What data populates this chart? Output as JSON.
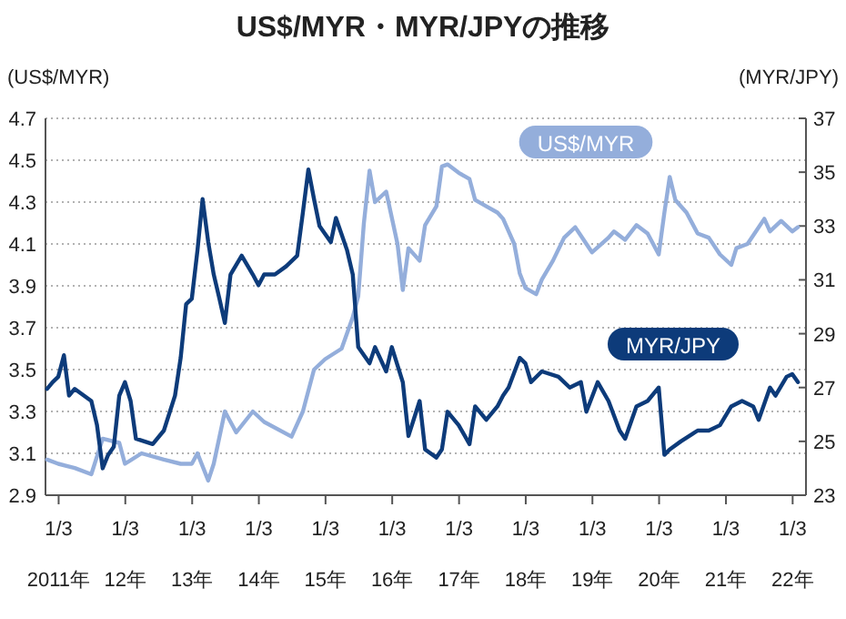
{
  "chart_data": {
    "type": "line",
    "title": "US$/MYR・MYR/JPYの推移",
    "ylabel": "(US$/MYR)",
    "y2label": "(MYR/JPY)",
    "xlim": [
      "2010-10-23",
      "2022-03-17"
    ],
    "xticks": [
      {
        "value": "2011-01-03",
        "label": "2011年"
      },
      {
        "value": "2012-01-03",
        "label": "12年"
      },
      {
        "value": "2013-01-03",
        "label": "13年"
      },
      {
        "value": "2014-01-03",
        "label": "14年"
      },
      {
        "value": "2015-01-03",
        "label": "15年"
      },
      {
        "value": "2016-01-03",
        "label": "16年"
      },
      {
        "value": "2017-01-03",
        "label": "17年"
      },
      {
        "value": "2018-01-03",
        "label": "18年"
      },
      {
        "value": "2019-01-03",
        "label": "19年"
      },
      {
        "value": "2020-01-03",
        "label": "20年"
      },
      {
        "value": "2021-01-03",
        "label": "21年"
      },
      {
        "value": "2022-01-03",
        "label": "22年"
      }
    ],
    "annotations": [
      "1/3",
      "1/3",
      "1/3",
      "1/3",
      "1/3",
      "1/3",
      "1/3",
      "1/3",
      "1/3",
      "1/3",
      "1/3",
      "1/3"
    ],
    "ylim": [
      2.9,
      4.7
    ],
    "yticks": [
      2.9,
      3.1,
      3.3,
      3.5,
      3.7,
      3.9,
      4.1,
      4.3,
      4.5,
      4.7
    ],
    "y2lim": [
      23,
      37
    ],
    "y2ticks": [
      23,
      25,
      27,
      29,
      31,
      33,
      35,
      37
    ],
    "grid": "y",
    "series": [
      {
        "name": "US$/MYR",
        "color": "#94aedb",
        "x": [
          "2010-11",
          "2011-01",
          "2011-04",
          "2011-07",
          "2011-09",
          "2011-12",
          "2012-01",
          "2012-04",
          "2012-08",
          "2012-11",
          "2013-01",
          "2013-02",
          "2013-04",
          "2013-05",
          "2013-07",
          "2013-09",
          "2013-12",
          "2014-02",
          "2014-07",
          "2014-09",
          "2014-11",
          "2015-01",
          "2015-04",
          "2015-06",
          "2015-07",
          "2015-08",
          "2015-09",
          "2015-10",
          "2015-12",
          "2016-02",
          "2016-03",
          "2016-04",
          "2016-06",
          "2016-07",
          "2016-09",
          "2016-10",
          "2016-11",
          "2017-01",
          "2017-03",
          "2017-04",
          "2017-06",
          "2017-08",
          "2017-09",
          "2017-11",
          "2017-12",
          "2018-01",
          "2018-03",
          "2018-04",
          "2018-06",
          "2018-08",
          "2018-10",
          "2018-12",
          "2019-01",
          "2019-04",
          "2019-05",
          "2019-07",
          "2019-09",
          "2019-11",
          "2020-01",
          "2020-02",
          "2020-03",
          "2020-04",
          "2020-06",
          "2020-08",
          "2020-10",
          "2020-12",
          "2021-02",
          "2021-03",
          "2021-05",
          "2021-08",
          "2021-09",
          "2021-11",
          "2022-01",
          "2022-02"
        ],
        "values": [
          3.07,
          3.05,
          3.03,
          3.0,
          3.17,
          3.15,
          3.05,
          3.1,
          3.07,
          3.05,
          3.05,
          3.1,
          2.97,
          3.05,
          3.3,
          3.2,
          3.3,
          3.25,
          3.18,
          3.3,
          3.5,
          3.55,
          3.6,
          3.75,
          3.85,
          4.2,
          4.45,
          4.3,
          4.35,
          4.1,
          3.88,
          4.08,
          4.02,
          4.19,
          4.28,
          4.47,
          4.48,
          4.44,
          4.41,
          4.31,
          4.28,
          4.25,
          4.22,
          4.1,
          3.96,
          3.89,
          3.86,
          3.93,
          4.02,
          4.13,
          4.18,
          4.1,
          4.06,
          4.13,
          4.16,
          4.12,
          4.19,
          4.15,
          4.05,
          4.25,
          4.42,
          4.31,
          4.25,
          4.15,
          4.13,
          4.05,
          4.0,
          4.08,
          4.1,
          4.22,
          4.16,
          4.21,
          4.16,
          4.18
        ]
      },
      {
        "name": "MYR/JPY",
        "color": "#0d3b7a",
        "axis": "y2",
        "x": [
          "2010-11",
          "2010-12",
          "2011-01",
          "2011-02",
          "2011-03",
          "2011-04",
          "2011-07",
          "2011-08",
          "2011-09",
          "2011-10",
          "2011-11",
          "2011-12",
          "2012-01",
          "2012-02",
          "2012-03",
          "2012-06",
          "2012-08",
          "2012-10",
          "2012-11",
          "2012-12",
          "2013-01",
          "2013-02",
          "2013-03",
          "2013-04",
          "2013-05",
          "2013-06",
          "2013-07",
          "2013-08",
          "2013-10",
          "2013-12",
          "2014-01",
          "2014-02",
          "2014-04",
          "2014-06",
          "2014-08",
          "2014-09",
          "2014-10",
          "2014-11",
          "2014-12",
          "2015-02",
          "2015-03",
          "2015-05",
          "2015-06",
          "2015-07",
          "2015-09",
          "2015-10",
          "2015-12",
          "2016-01",
          "2016-03",
          "2016-04",
          "2016-06",
          "2016-07",
          "2016-09",
          "2016-10",
          "2016-11",
          "2017-01",
          "2017-03",
          "2017-04",
          "2017-06",
          "2017-08",
          "2017-09",
          "2017-10",
          "2017-12",
          "2018-01",
          "2018-02",
          "2018-04",
          "2018-07",
          "2018-09",
          "2018-11",
          "2018-12",
          "2019-02",
          "2019-04",
          "2019-06",
          "2019-07",
          "2019-09",
          "2019-11",
          "2020-01",
          "2020-02",
          "2020-03",
          "2020-05",
          "2020-08",
          "2020-10",
          "2020-12",
          "2021-02",
          "2021-04",
          "2021-06",
          "2021-07",
          "2021-09",
          "2021-10",
          "2021-12",
          "2022-01",
          "2022-02"
        ],
        "values": [
          26.95,
          27.2,
          27.4,
          28.2,
          26.7,
          26.95,
          26.5,
          25.6,
          24.0,
          24.5,
          24.8,
          26.7,
          27.2,
          26.5,
          25.1,
          24.9,
          25.4,
          26.7,
          28.1,
          30.1,
          30.3,
          32.1,
          34.0,
          32.4,
          31.2,
          30.3,
          29.4,
          31.2,
          31.9,
          31.2,
          30.8,
          31.2,
          31.2,
          31.5,
          31.9,
          33.5,
          35.1,
          34.0,
          33.0,
          32.4,
          33.3,
          32.1,
          31.2,
          28.5,
          27.9,
          28.5,
          27.6,
          28.5,
          27.2,
          25.2,
          26.5,
          24.7,
          24.4,
          24.7,
          26.1,
          25.6,
          24.9,
          26.3,
          25.8,
          26.3,
          26.7,
          27.0,
          28.1,
          27.9,
          27.2,
          27.6,
          27.4,
          27.0,
          27.2,
          26.1,
          27.2,
          26.5,
          25.4,
          25.1,
          26.3,
          26.5,
          27.0,
          24.5,
          24.7,
          25.0,
          25.4,
          25.4,
          25.6,
          26.3,
          26.5,
          26.3,
          25.8,
          27.0,
          26.7,
          27.4,
          27.5,
          27.2
        ]
      }
    ]
  }
}
